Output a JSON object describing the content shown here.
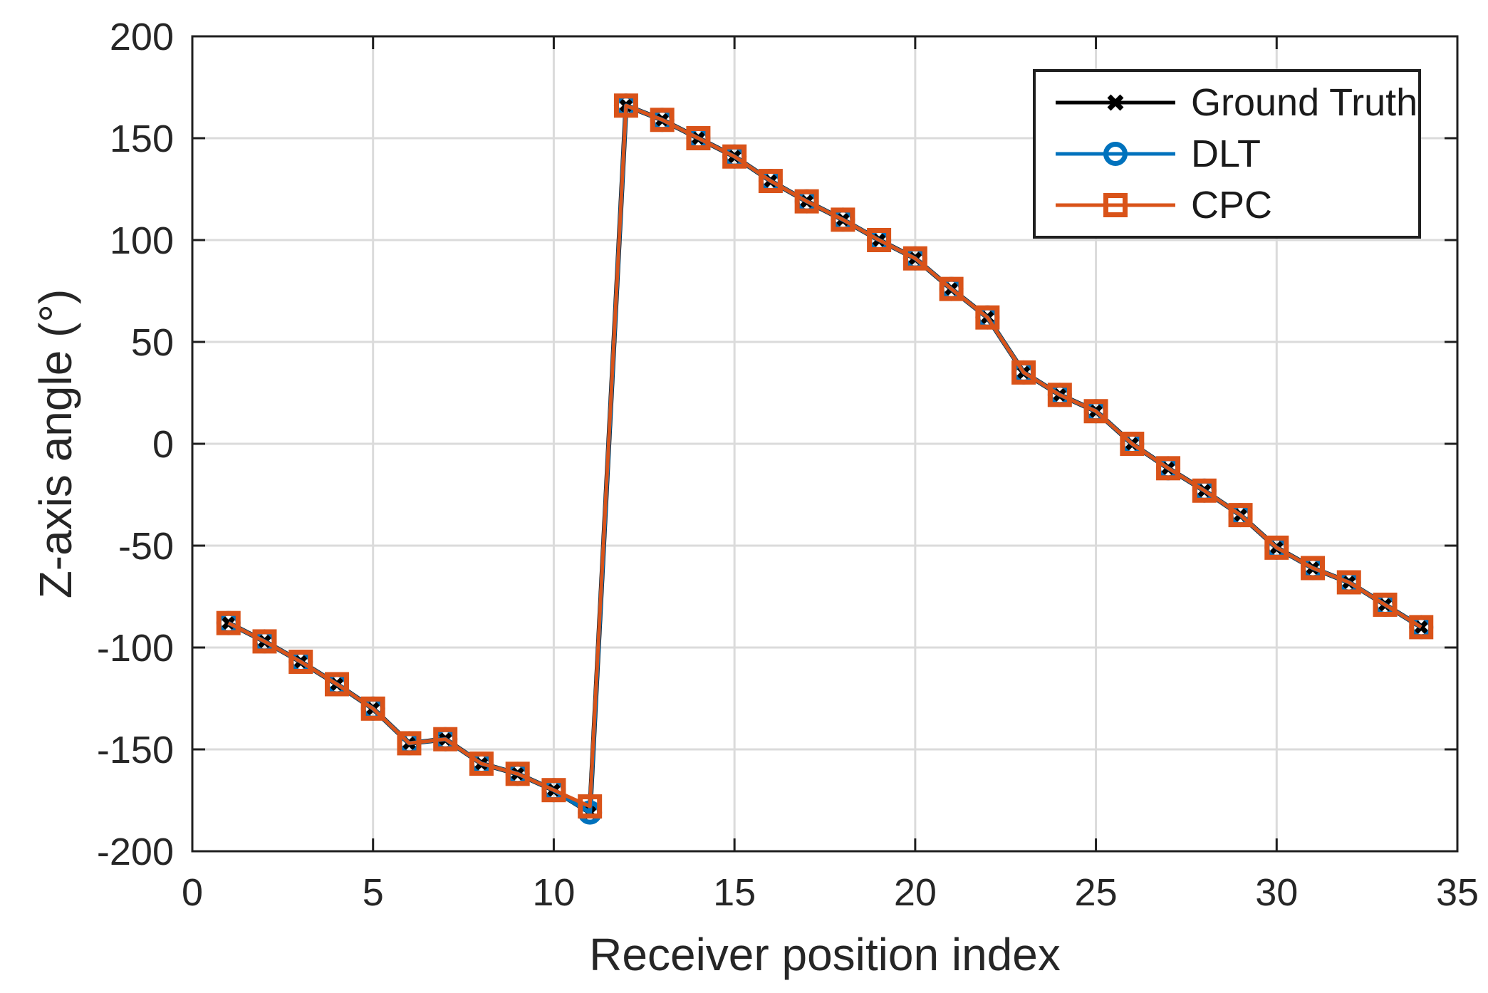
{
  "figure": {
    "background": "#ffffff",
    "axis_color": "#262626",
    "frame_color": "#1f1f1f",
    "grid_color": "#dbdbdb"
  },
  "chart_data": {
    "type": "line",
    "title": "",
    "xlabel": "Receiver position index",
    "ylabel": "Z-axis angle (°)",
    "xlim": [
      0,
      35
    ],
    "ylim": [
      -200,
      200
    ],
    "x_ticks": [
      0,
      5,
      10,
      15,
      20,
      25,
      30,
      35
    ],
    "y_ticks": [
      -200,
      -150,
      -100,
      -50,
      0,
      50,
      100,
      150,
      200
    ],
    "grid": true,
    "legend_position": "top-right",
    "x": [
      1,
      2,
      3,
      4,
      5,
      6,
      7,
      8,
      9,
      10,
      11,
      12,
      13,
      14,
      15,
      16,
      17,
      18,
      19,
      20,
      21,
      22,
      23,
      24,
      25,
      26,
      27,
      28,
      29,
      30,
      31,
      32,
      33,
      34
    ],
    "series": [
      {
        "name": "Ground Truth",
        "color": "#000000",
        "marker": "x",
        "values": [
          -88,
          -97,
          -107,
          -118,
          -130,
          -147,
          -145,
          -157,
          -162,
          -170,
          -181,
          166,
          159,
          150,
          141,
          129,
          119,
          110,
          100,
          91,
          76,
          62,
          35,
          24,
          16,
          0,
          -12,
          -23,
          -35,
          -51,
          -61,
          -68,
          -79,
          -90
        ]
      },
      {
        "name": "DLT",
        "color": "#0072BD",
        "marker": "circle",
        "values": [
          -88,
          -97,
          -107,
          -118,
          -130,
          -147,
          -145,
          -157,
          -162,
          -170,
          -181,
          166,
          159,
          150,
          141,
          129,
          119,
          110,
          100,
          91,
          76,
          62,
          35,
          24,
          16,
          0,
          -12,
          -23,
          -35,
          -51,
          -61,
          -68,
          -79,
          -90
        ]
      },
      {
        "name": "CPC",
        "color": "#D95319",
        "marker": "square",
        "values": [
          -88,
          -97,
          -107,
          -118,
          -130,
          -147,
          -145,
          -157,
          -162,
          -170,
          -178,
          166,
          159,
          150,
          141,
          129,
          119,
          110,
          100,
          91,
          76,
          62,
          35,
          24,
          16,
          0,
          -12,
          -23,
          -35,
          -51,
          -61,
          -68,
          -79,
          -90
        ]
      }
    ]
  }
}
